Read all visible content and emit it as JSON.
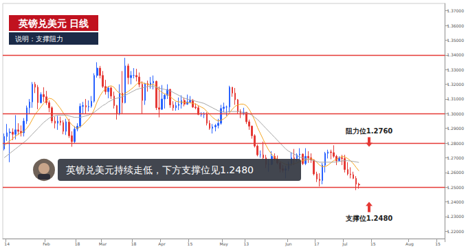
{
  "chart_data": {
    "type": "candlestick",
    "title": "英镑兑美元 日线",
    "subtitle": "说明：支撑阻力",
    "callout": "英镑兑美元持续走低，下方支撑位见1.2480",
    "annotations": [
      {
        "text": "阻力位1.2760",
        "value": 1.276
      },
      {
        "text": "支撑位1.2480",
        "value": 1.248
      }
    ],
    "hlines": [
      {
        "value": 1.336,
        "color": "#e53935"
      },
      {
        "value": 1.3,
        "color": "#e53935"
      },
      {
        "value": 1.276,
        "color": "#e53935"
      },
      {
        "value": 1.248,
        "color": "#e53935"
      }
    ],
    "grid": false,
    "ylim": [
      1.215,
      1.375
    ],
    "yticks": [
      {
        "value": 1.22,
        "label": "1.22000"
      },
      {
        "value": 1.23,
        "label": "1.23000"
      },
      {
        "value": 1.24,
        "label": "1.24000"
      },
      {
        "value": 1.25,
        "label": "1.25000"
      },
      {
        "value": 1.26,
        "label": "1.26000"
      },
      {
        "value": 1.27,
        "label": "1.27000"
      },
      {
        "value": 1.28,
        "label": "1.28000"
      },
      {
        "value": 1.29,
        "label": "1.29000"
      },
      {
        "value": 1.3,
        "label": "1.30000"
      },
      {
        "value": 1.31,
        "label": "1.31000"
      },
      {
        "value": 1.32,
        "label": "1.32000"
      },
      {
        "value": 1.33,
        "label": "1.33000"
      },
      {
        "value": 1.34,
        "label": "1.34000"
      },
      {
        "value": 1.35,
        "label": "1.35000"
      },
      {
        "value": 1.36,
        "label": "1.36000"
      },
      {
        "value": 1.37,
        "label": "1.37000"
      }
    ],
    "categories": [
      null,
      "14",
      null,
      null,
      null,
      null,
      null,
      null,
      null,
      null,
      null,
      null,
      null,
      null,
      null,
      "Feb",
      null,
      null,
      null,
      null,
      null,
      null,
      null,
      null,
      null,
      null,
      "18",
      null,
      null,
      null,
      null,
      null,
      null,
      null,
      null,
      "Mar",
      null,
      null,
      null,
      null,
      null,
      null,
      null,
      null,
      null,
      null,
      "18",
      null,
      null,
      null,
      null,
      null,
      null,
      null,
      null,
      null,
      "Apr",
      null,
      null,
      null,
      null,
      null,
      null,
      null,
      null,
      null,
      "15",
      null,
      null,
      null,
      null,
      null,
      null,
      null,
      null,
      null,
      null,
      null,
      "May",
      null,
      null,
      null,
      null,
      null,
      null,
      null,
      "13",
      null,
      null,
      null,
      null,
      null,
      null,
      null,
      null,
      null,
      null,
      null,
      null,
      null,
      null,
      "Jun",
      null,
      null,
      null,
      null,
      null,
      null,
      null,
      null,
      null,
      "17",
      null,
      null,
      null,
      null,
      null,
      null,
      null,
      null,
      null,
      "Jul",
      null,
      null,
      null,
      null,
      null,
      null,
      null,
      null,
      null,
      "15",
      null,
      null,
      null,
      null,
      null,
      null,
      null,
      null,
      null,
      null,
      null,
      null,
      "Aug",
      null,
      null,
      null,
      null,
      null,
      null,
      null,
      null,
      null,
      "15",
      null,
      null
    ],
    "values": [
      [
        1.276,
        1.2845,
        1.275,
        1.2865
      ],
      [
        1.2845,
        1.287,
        1.2815,
        1.293
      ],
      [
        1.287,
        1.2875,
        1.267,
        1.29
      ],
      [
        1.2875,
        1.286,
        1.282,
        1.29
      ],
      [
        1.286,
        1.289,
        1.2825,
        1.299
      ],
      [
        1.289,
        1.288,
        1.2855,
        1.2935
      ],
      [
        1.288,
        1.287,
        1.2845,
        1.292
      ],
      [
        1.287,
        1.295,
        1.2845,
        1.297
      ],
      [
        1.295,
        1.304,
        1.293,
        1.3055
      ],
      [
        1.304,
        1.308,
        1.3,
        1.31
      ],
      [
        1.308,
        1.32,
        1.304,
        1.3215
      ],
      [
        1.32,
        1.318,
        1.314,
        1.3215
      ],
      [
        1.318,
        1.3075,
        1.303,
        1.3195
      ],
      [
        1.3075,
        1.313,
        1.307,
        1.3145
      ],
      [
        1.313,
        1.3115,
        1.308,
        1.318
      ],
      [
        1.3115,
        1.3075,
        1.306,
        1.3155
      ],
      [
        1.3075,
        1.304,
        1.301,
        1.309
      ],
      [
        1.304,
        1.295,
        1.2935,
        1.305
      ],
      [
        1.295,
        1.2935,
        1.29,
        1.298
      ],
      [
        1.2935,
        1.295,
        1.289,
        1.2985
      ],
      [
        1.295,
        1.294,
        1.292,
        1.298
      ],
      [
        1.294,
        1.288,
        1.286,
        1.2955
      ],
      [
        1.288,
        1.2945,
        1.2855,
        1.2965
      ],
      [
        1.2945,
        1.285,
        1.2835,
        1.2965
      ],
      [
        1.285,
        1.281,
        1.2775,
        1.288
      ],
      [
        1.281,
        1.2895,
        1.28,
        1.2915
      ],
      [
        1.2895,
        1.2915,
        1.288,
        1.2935
      ],
      [
        1.2915,
        1.305,
        1.2905,
        1.307
      ],
      [
        1.305,
        1.3055,
        1.3,
        1.308
      ],
      [
        1.3055,
        1.3045,
        1.3,
        1.31
      ],
      [
        1.3045,
        1.305,
        1.3015,
        1.309
      ],
      [
        1.305,
        1.3085,
        1.304,
        1.312
      ],
      [
        1.3085,
        1.326,
        1.3075,
        1.3275
      ],
      [
        1.326,
        1.331,
        1.3245,
        1.335
      ],
      [
        1.331,
        1.326,
        1.324,
        1.3325
      ],
      [
        1.326,
        1.3185,
        1.3175,
        1.329
      ],
      [
        1.3185,
        1.315,
        1.313,
        1.323
      ],
      [
        1.315,
        1.3175,
        1.3105,
        1.3185
      ],
      [
        1.3175,
        1.312,
        1.31,
        1.3185
      ],
      [
        1.312,
        1.3055,
        1.3035,
        1.315
      ],
      [
        1.3055,
        1.3,
        1.296,
        1.306
      ],
      [
        1.3,
        1.314,
        1.299,
        1.32
      ],
      [
        1.314,
        1.3075,
        1.3,
        1.329
      ],
      [
        1.3075,
        1.3325,
        1.307,
        1.338
      ],
      [
        1.3325,
        1.3245,
        1.32,
        1.334
      ],
      [
        1.3245,
        1.326,
        1.32,
        1.329
      ],
      [
        1.326,
        1.326,
        1.324,
        1.331
      ],
      [
        1.326,
        1.325,
        1.322,
        1.3305
      ],
      [
        1.325,
        1.32,
        1.318,
        1.328
      ],
      [
        1.32,
        1.309,
        1.3,
        1.322
      ],
      [
        1.309,
        1.3205,
        1.306,
        1.321
      ],
      [
        1.3205,
        1.3195,
        1.315,
        1.3225
      ],
      [
        1.3195,
        1.321,
        1.317,
        1.325
      ],
      [
        1.321,
        1.322,
        1.3165,
        1.326
      ],
      [
        1.322,
        1.304,
        1.3025,
        1.3225
      ],
      [
        1.304,
        1.303,
        1.2975,
        1.3185
      ],
      [
        1.303,
        1.31,
        1.3025,
        1.3195
      ],
      [
        1.31,
        1.3125,
        1.3035,
        1.3135
      ],
      [
        1.3125,
        1.3165,
        1.31,
        1.32
      ],
      [
        1.3165,
        1.306,
        1.304,
        1.317
      ],
      [
        1.306,
        1.304,
        1.302,
        1.3085
      ],
      [
        1.304,
        1.3055,
        1.302,
        1.308
      ],
      [
        1.3055,
        1.3065,
        1.3025,
        1.311
      ],
      [
        1.3065,
        1.309,
        1.3035,
        1.3125
      ],
      [
        1.309,
        1.3065,
        1.305,
        1.311
      ],
      [
        1.3065,
        1.308,
        1.306,
        1.313
      ],
      [
        1.308,
        1.309,
        1.307,
        1.312
      ],
      [
        1.309,
        1.3045,
        1.304,
        1.31
      ],
      [
        1.3045,
        1.304,
        1.303,
        1.307
      ],
      [
        1.304,
        1.2995,
        1.299,
        1.3055
      ],
      [
        1.2995,
        1.2995,
        1.298,
        1.301
      ],
      [
        1.2995,
        1.3,
        1.297,
        1.301
      ],
      [
        1.3,
        1.2935,
        1.292,
        1.301
      ],
      [
        1.2935,
        1.29,
        1.289,
        1.2955
      ],
      [
        1.29,
        1.291,
        1.2865,
        1.293
      ],
      [
        1.291,
        1.292,
        1.288,
        1.293
      ],
      [
        1.292,
        1.2935,
        1.29,
        1.2965
      ],
      [
        1.2935,
        1.3035,
        1.2925,
        1.306
      ],
      [
        1.3035,
        1.3045,
        1.301,
        1.3075
      ],
      [
        1.3045,
        1.3045,
        1.2985,
        1.3055
      ],
      [
        1.3045,
        1.318,
        1.301,
        1.319
      ],
      [
        1.318,
        1.314,
        1.3115,
        1.318
      ],
      [
        1.314,
        1.3095,
        1.306,
        1.3175
      ],
      [
        1.3095,
        1.3015,
        1.3,
        1.31
      ],
      [
        1.3015,
        1.3005,
        1.297,
        1.303
      ],
      [
        1.3005,
        1.301,
        1.299,
        1.304
      ],
      [
        1.301,
        1.2945,
        1.293,
        1.3
      ],
      [
        1.2945,
        1.2915,
        1.289,
        1.296
      ],
      [
        1.2915,
        1.285,
        1.283,
        1.292
      ],
      [
        1.285,
        1.278,
        1.277,
        1.286
      ],
      [
        1.278,
        1.272,
        1.271,
        1.279
      ],
      [
        1.272,
        1.272,
        1.27,
        1.275
      ],
      [
        1.272,
        1.27,
        1.269,
        1.281
      ],
      [
        1.27,
        1.2655,
        1.263,
        1.272
      ],
      [
        1.2655,
        1.2655,
        1.2605,
        1.269
      ],
      [
        1.2655,
        1.271,
        1.265,
        1.2745
      ],
      [
        1.271,
        1.269,
        1.268,
        1.273
      ],
      [
        1.269,
        1.2665,
        1.2655,
        1.2715
      ],
      [
        1.2665,
        1.2625,
        1.26,
        1.2675
      ],
      [
        1.2625,
        1.2615,
        1.26,
        1.265
      ],
      [
        1.2615,
        1.2625,
        1.256,
        1.2645
      ],
      [
        1.2625,
        1.266,
        1.261,
        1.2675
      ],
      [
        1.266,
        1.27,
        1.2645,
        1.2735
      ],
      [
        1.27,
        1.2695,
        1.265,
        1.276
      ],
      [
        1.2695,
        1.272,
        1.2675,
        1.273
      ],
      [
        1.272,
        1.2725,
        1.2685,
        1.2765
      ],
      [
        1.2725,
        1.266,
        1.265,
        1.273
      ],
      [
        1.266,
        1.271,
        1.265,
        1.2765
      ],
      [
        1.271,
        1.27,
        1.2665,
        1.2745
      ],
      [
        1.27,
        1.2685,
        1.2665,
        1.273
      ],
      [
        1.2685,
        1.259,
        1.258,
        1.269
      ],
      [
        1.259,
        1.2555,
        1.2535,
        1.2605
      ],
      [
        1.2555,
        1.2545,
        1.2505,
        1.2595
      ],
      [
        1.2545,
        1.265,
        1.252,
        1.2665
      ],
      [
        1.265,
        1.273,
        1.26,
        1.274
      ],
      [
        1.273,
        1.274,
        1.2695,
        1.2755
      ],
      [
        1.274,
        1.2735,
        1.269,
        1.2755
      ],
      [
        1.2735,
        1.271,
        1.27,
        1.2785
      ],
      [
        1.271,
        1.268,
        1.265,
        1.272
      ],
      [
        1.268,
        1.27,
        1.2675,
        1.271
      ],
      [
        1.27,
        1.2695,
        1.265,
        1.272
      ],
      [
        1.2695,
        1.262,
        1.26,
        1.272
      ],
      [
        1.262,
        1.259,
        1.258,
        1.267
      ],
      [
        1.259,
        1.2585,
        1.256,
        1.2635
      ],
      [
        1.2585,
        1.256,
        1.2555,
        1.2605
      ],
      [
        1.256,
        1.252,
        1.248,
        1.2575
      ],
      [
        1.252,
        1.2515,
        1.249,
        1.253
      ],
      null,
      null,
      null,
      null,
      null,
      null,
      null,
      null,
      null,
      null,
      null,
      null,
      null,
      null,
      null,
      null,
      null,
      null,
      null,
      null,
      null,
      null,
      null,
      null,
      null,
      null,
      null,
      null,
      null,
      null
    ],
    "series": [
      {
        "type": "line",
        "color": "#f5a623",
        "values": [
          1.278,
          1.28,
          1.2815,
          1.283,
          1.2845,
          1.286,
          1.2868,
          1.288,
          1.29,
          1.2925,
          1.296,
          1.2995,
          1.302,
          1.3045,
          1.307,
          1.309,
          1.3105,
          1.31,
          1.3085,
          1.306,
          1.3035,
          1.3005,
          1.298,
          1.295,
          1.2925,
          1.291,
          1.29,
          1.291,
          1.2925,
          1.2945,
          1.2965,
          1.299,
          1.303,
          1.308,
          1.312,
          1.315,
          1.317,
          1.3185,
          1.319,
          1.318,
          1.3155,
          1.314,
          1.3125,
          1.314,
          1.315,
          1.3165,
          1.318,
          1.32,
          1.3215,
          1.321,
          1.3205,
          1.32,
          1.3195,
          1.32,
          1.3185,
          1.316,
          1.3145,
          1.3135,
          1.313,
          1.3115,
          1.31,
          1.3085,
          1.308,
          1.308,
          1.3075,
          1.3075,
          1.3075,
          1.307,
          1.3065,
          1.3055,
          1.3045,
          1.3035,
          1.3015,
          1.2995,
          1.2975,
          1.296,
          1.295,
          1.2955,
          1.2965,
          1.298,
          1.3005,
          1.303,
          1.305,
          1.306,
          1.3065,
          1.3065,
          1.3055,
          1.303,
          1.2995,
          1.2955,
          1.2905,
          1.2865,
          1.2825,
          1.2785,
          1.275,
          1.2725,
          1.2705,
          1.269,
          1.2675,
          1.2665,
          1.2655,
          1.265,
          1.2655,
          1.266,
          1.2665,
          1.2675,
          1.268,
          1.2685,
          1.269,
          1.2695,
          1.2685,
          1.267,
          1.265,
          1.264,
          1.264,
          1.265,
          1.2665,
          1.268,
          1.269,
          1.27,
          1.271,
          1.2705,
          1.2695,
          1.268,
          1.266,
          1.2635,
          1.261,
          null,
          null,
          null,
          null,
          null,
          null,
          null,
          null,
          null,
          null,
          null,
          null,
          null,
          null,
          null,
          null,
          null,
          null,
          null,
          null,
          null,
          null,
          null,
          null,
          null,
          null,
          null,
          null,
          null,
          null
        ]
      },
      {
        "type": "line",
        "color": "#a6a6a6",
        "values": [
          1.27,
          1.2715,
          1.273,
          1.2745,
          1.276,
          1.2775,
          1.279,
          1.2805,
          1.282,
          1.284,
          1.286,
          1.288,
          1.29,
          1.292,
          1.294,
          1.2955,
          1.297,
          1.298,
          1.2985,
          1.299,
          1.299,
          1.299,
          1.299,
          1.2985,
          1.298,
          1.2975,
          1.2975,
          1.2975,
          1.298,
          1.2985,
          1.299,
          1.3,
          1.301,
          1.3025,
          1.304,
          1.3055,
          1.3065,
          1.308,
          1.309,
          1.31,
          1.3105,
          1.311,
          1.3115,
          1.3125,
          1.3135,
          1.3145,
          1.3155,
          1.3165,
          1.317,
          1.3175,
          1.318,
          1.3185,
          1.3185,
          1.3185,
          1.318,
          1.3175,
          1.317,
          1.3165,
          1.316,
          1.3155,
          1.3145,
          1.3135,
          1.3125,
          1.3115,
          1.3105,
          1.31,
          1.3095,
          1.309,
          1.3085,
          1.308,
          1.3075,
          1.307,
          1.306,
          1.305,
          1.304,
          1.303,
          1.302,
          1.3015,
          1.301,
          1.301,
          1.3015,
          1.3015,
          1.3015,
          1.3015,
          1.301,
          1.301,
          1.3005,
          1.3,
          1.299,
          1.2975,
          1.296,
          1.294,
          1.292,
          1.29,
          1.288,
          1.286,
          1.284,
          1.282,
          1.28,
          1.278,
          1.276,
          1.2745,
          1.2735,
          1.2725,
          1.2715,
          1.2705,
          1.27,
          1.2695,
          1.269,
          1.2685,
          1.268,
          1.2675,
          1.267,
          1.267,
          1.267,
          1.267,
          1.267,
          1.267,
          1.2672,
          1.2675,
          1.2678,
          1.268,
          1.268,
          1.2678,
          1.2675,
          1.2672,
          1.2668,
          null,
          null,
          null,
          null,
          null,
          null,
          null,
          null,
          null,
          null,
          null,
          null,
          null,
          null,
          null,
          null,
          null,
          null,
          null,
          null,
          null,
          null,
          null,
          null,
          null,
          null,
          null,
          null,
          null,
          null
        ]
      }
    ]
  }
}
